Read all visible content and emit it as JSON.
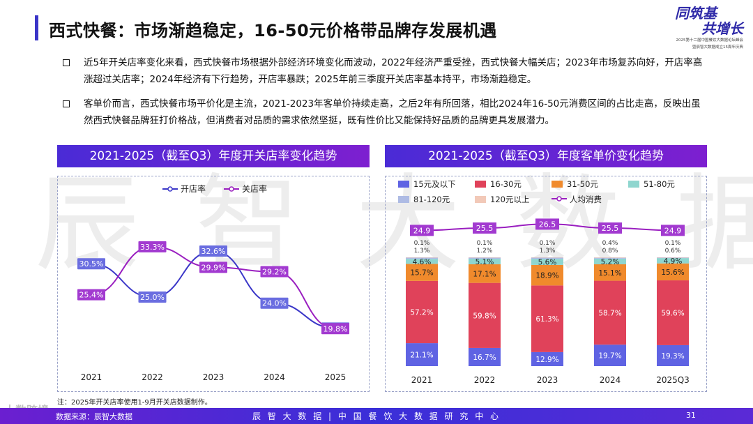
{
  "header": {
    "title": "西式快餐：市场渐趋稳定，16-50元价格带品牌存发展机遇",
    "logo_line1": "同筑基",
    "logo_line2": "共增长",
    "logo_sub1": "2025第十二届中国餐饮大数据论坛峰会",
    "logo_sub2": "暨辰智大数据成立15周年庆典"
  },
  "bullets": [
    "近5年开关店率变化来看，西式快餐市场根据外部经济环境变化而波动，2022年经济严重受挫，西式快餐大幅关店；2023年市场复苏向好，开店率高涨超过关店率；2024年经济有下行趋势，开店率暴跌；2025年前三季度开关店率基本持平，市场渐趋稳定。",
    "客单价而言，西式快餐市场平价化是主流，2021-2023年客单价持续走高，之后2年有所回落，相比2024年16-50元消费区间的占比走高，反映出虽然西式快餐品牌狂打价格战，但消费者对品质的需求依然坚挺，既有性价比又能保持好品质的品牌更具发展潜力。"
  ],
  "watermark": "辰智大数据",
  "corner_watermark": "大数跨境",
  "chart_data": [
    {
      "type": "line",
      "title": "2021-2025（截至Q3）年度开关店率变化趋势",
      "categories": [
        "2021",
        "2022",
        "2023",
        "2024",
        "2025"
      ],
      "ylim": [
        15,
        38
      ],
      "series": [
        {
          "name": "开店率",
          "color": "#3b37c8",
          "values": [
            30.5,
            25.0,
            32.6,
            24.0,
            19.9
          ],
          "labels": [
            "30.5%",
            "25.0%",
            "32.6%",
            "24.0%",
            "19.9%"
          ]
        },
        {
          "name": "关店率",
          "color": "#9a1fc0",
          "values": [
            25.4,
            33.3,
            29.9,
            29.2,
            19.8
          ],
          "labels": [
            "25.4%",
            "33.3%",
            "29.9%",
            "29.2%",
            "19.8%"
          ]
        }
      ]
    },
    {
      "type": "bar",
      "stacked": true,
      "title": "2021-2025（截至Q3）年度客单价变化趋势",
      "categories": [
        "2021",
        "2022",
        "2023",
        "2024",
        "2025Q3"
      ],
      "series": [
        {
          "name": "15元及以下",
          "color": "#5f63e3",
          "values": [
            21.1,
            16.7,
            12.9,
            19.7,
            19.3
          ]
        },
        {
          "name": "16-30元",
          "color": "#e0425a",
          "values": [
            57.2,
            59.8,
            61.3,
            58.7,
            59.6
          ]
        },
        {
          "name": "31-50元",
          "color": "#f08a2c",
          "values": [
            15.7,
            17.1,
            18.9,
            15.1,
            15.6
          ]
        },
        {
          "name": "51-80元",
          "color": "#8fd6cf",
          "values": [
            4.6,
            5.1,
            5.6,
            5.2,
            4.9
          ]
        },
        {
          "name": "81-120元",
          "color": "#aebbe4",
          "values": [
            1.3,
            1.2,
            1.3,
            0.8,
            0.6
          ]
        },
        {
          "name": "120元以上",
          "color": "#f2c9b8",
          "values": [
            0.1,
            0.1,
            0.1,
            0.4,
            0.1
          ]
        }
      ],
      "labels": {
        "15元及以下": [
          "21.1%",
          "16.7%",
          "12.9%",
          "19.7%",
          "19.3%"
        ],
        "16-30元": [
          "57.2%",
          "59.8%",
          "61.3%",
          "58.7%",
          "59.6%"
        ],
        "31-50元": [
          "15.7%",
          "17.1%",
          "18.9%",
          "15.1%",
          "15.6%"
        ],
        "51-80元": [
          "4.6%",
          "5.1%",
          "5.6%",
          "5.2%",
          "4.9%"
        ],
        "81-120元": [
          "1.3%",
          "1.2%",
          "1.3%",
          "0.8%",
          "0.6%"
        ],
        "120元以上": [
          "0.1%",
          "0.1%",
          "0.1%",
          "0.4%",
          "0.1%"
        ]
      },
      "line": {
        "name": "人均消费",
        "color": "#9a1fc0",
        "values": [
          24.9,
          25.5,
          26.5,
          25.5,
          24.9
        ],
        "labels": [
          "24.9",
          "25.5",
          "26.5",
          "25.5",
          "24.9"
        ]
      }
    }
  ],
  "footer": {
    "note": "注：2025年开关店率使用1-9月开关店数据制作。",
    "source": "数据来源：辰智大数据",
    "center": "辰 智 大 数 据  |  中 国 餐 饮 大 数 据 研 究 中 心",
    "page": "31"
  }
}
